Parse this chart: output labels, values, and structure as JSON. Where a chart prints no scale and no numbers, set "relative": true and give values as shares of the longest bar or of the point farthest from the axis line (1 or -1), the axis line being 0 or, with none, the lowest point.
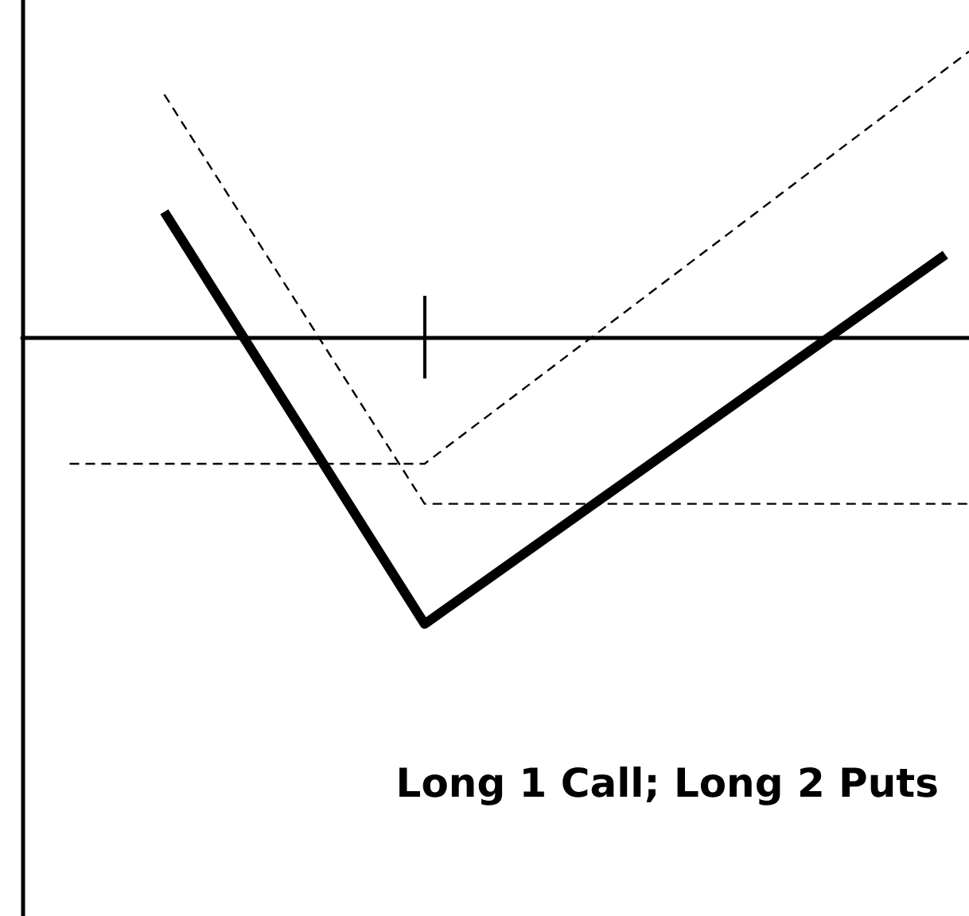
{
  "chart_data": {
    "type": "line",
    "title": "Long 1 Call; Long 2 Puts",
    "relative": true,
    "marker": "none",
    "categories": [
      null,
      null,
      null,
      null,
      null,
      null,
      null,
      null,
      null,
      null,
      null,
      null,
      null,
      null,
      null,
      null,
      null,
      null,
      null,
      null,
      null,
      null,
      null,
      null,
      null,
      null,
      null,
      null,
      null,
      null,
      null,
      null,
      null,
      null,
      null,
      null,
      null,
      null,
      null,
      null,
      null
    ],
    "series": [
      {
        "color": "#000000",
        "line_style": "solid",
        "values": [
          null,
          null,
          null,
          null,
          null,
          null,
          0.44,
          null,
          null,
          null,
          null,
          null,
          null,
          null,
          null,
          null,
          null,
          -1,
          null,
          null,
          null,
          null,
          null,
          null,
          null,
          null,
          null,
          null,
          null,
          null,
          null,
          null,
          null,
          null,
          null,
          null,
          null,
          null,
          null,
          0.29,
          null
        ]
      },
      {
        "color": "#000000",
        "line_style": "dashed",
        "values": [
          null,
          null,
          null,
          null,
          null,
          null,
          0.85,
          null,
          null,
          null,
          null,
          null,
          null,
          null,
          null,
          null,
          null,
          -0.58,
          null,
          null,
          null,
          null,
          null,
          null,
          null,
          null,
          null,
          null,
          null,
          null,
          null,
          null,
          null,
          null,
          null,
          null,
          null,
          null,
          null,
          null,
          -0.58
        ]
      },
      {
        "color": "#000000",
        "line_style": "dashed",
        "values": [
          null,
          null,
          -0.44,
          null,
          null,
          null,
          null,
          null,
          null,
          null,
          null,
          null,
          null,
          null,
          null,
          null,
          null,
          -0.44,
          null,
          null,
          null,
          null,
          null,
          null,
          null,
          null,
          null,
          null,
          null,
          null,
          null,
          null,
          null,
          null,
          null,
          null,
          null,
          null,
          null,
          null,
          1
        ]
      }
    ]
  }
}
